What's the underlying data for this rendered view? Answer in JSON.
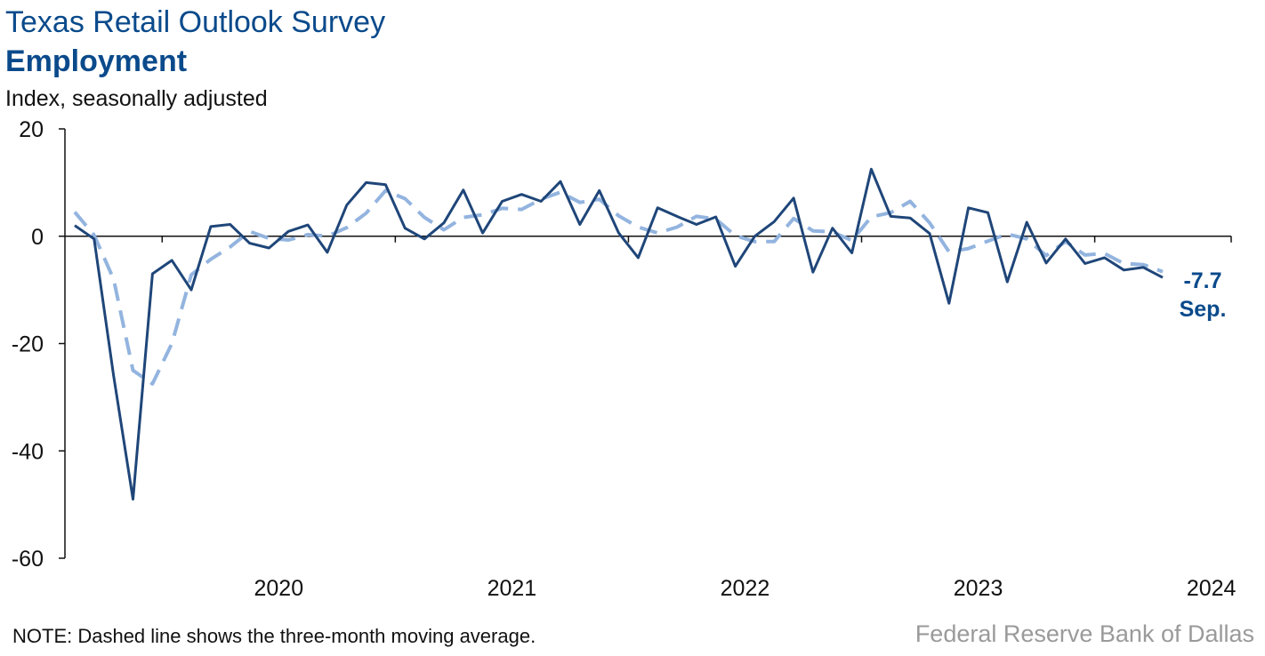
{
  "chart_data": {
    "type": "line",
    "title": "Texas Retail Outlook Survey",
    "subtitle": "Employment",
    "ylabel": "Index, seasonally adjusted",
    "ylim": [
      -60,
      20
    ],
    "yticks": [
      20,
      0,
      -20,
      -40,
      -60
    ],
    "x_start": "2019-08",
    "x_end": "2024-09",
    "year_labels": [
      "2020",
      "2021",
      "2022",
      "2023",
      "2024"
    ],
    "grid": false,
    "legend": "none",
    "series": [
      {
        "style": "solid",
        "color": "#1f4679",
        "values": [
          2.0,
          -0.5,
          -26.0,
          -49.0,
          -7.0,
          -4.5,
          -10.0,
          1.8,
          2.2,
          -1.3,
          -2.2,
          0.9,
          2.1,
          -3.0,
          5.8,
          10.0,
          9.6,
          1.5,
          -0.5,
          2.5,
          8.6,
          0.6,
          6.5,
          7.8,
          6.5,
          10.2,
          2.2,
          8.5,
          0.6,
          -4.0,
          5.3,
          3.7,
          2.2,
          3.6,
          -5.6,
          0.0,
          2.7,
          7.1,
          -6.7,
          1.5,
          -3.1,
          12.5,
          3.7,
          3.4,
          0.5,
          -12.5,
          5.3,
          4.4,
          -8.5,
          2.6,
          -5.0,
          -0.5,
          -5.1,
          -4.0,
          -6.3,
          -5.8,
          -7.7
        ]
      },
      {
        "style": "dashed",
        "color": "#93b4df",
        "values": [
          4.5,
          0.2,
          -8.0,
          -25.0,
          -27.5,
          -20.0,
          -7.2,
          -4.3,
          -2.0,
          0.9,
          -0.4,
          -0.7,
          0.3,
          0.0,
          1.6,
          4.3,
          8.5,
          7.0,
          3.5,
          1.2,
          3.5,
          4.0,
          5.2,
          5.0,
          6.9,
          8.2,
          6.3,
          6.9,
          3.8,
          1.7,
          0.6,
          1.7,
          3.7,
          3.2,
          0.1,
          -1.0,
          -1.0,
          3.3,
          1.0,
          0.8,
          -0.8,
          3.6,
          4.4,
          6.5,
          2.5,
          -2.9,
          -2.3,
          -0.9,
          0.4,
          -0.5,
          -3.6,
          -1.0,
          -3.5,
          -3.2,
          -5.1,
          -5.3,
          -6.6
        ]
      }
    ],
    "end_value_label": "-7.7",
    "end_month_label": "Sep."
  },
  "note": "NOTE: Dashed line shows the three-month moving average.",
  "source": "Federal Reserve Bank of Dallas"
}
